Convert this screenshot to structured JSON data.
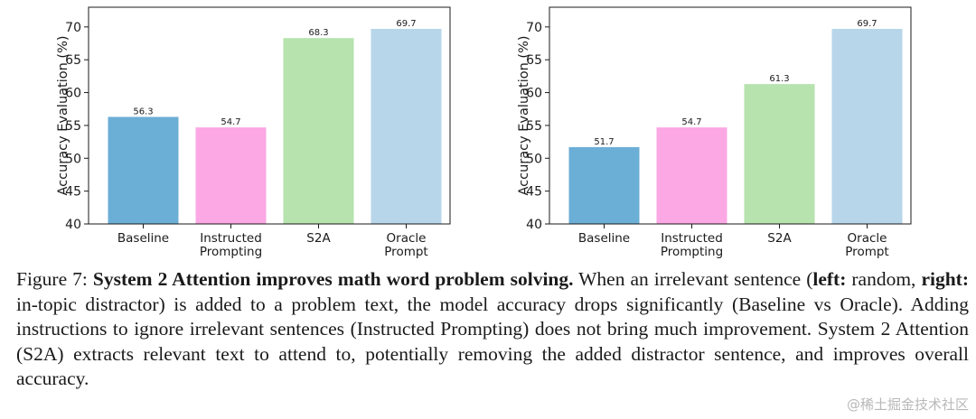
{
  "chart_data": [
    {
      "type": "bar",
      "panel": "left",
      "categories": [
        [
          "Baseline"
        ],
        [
          "Instructed",
          "Prompting"
        ],
        [
          "S2A"
        ],
        [
          "Oracle",
          "Prompt"
        ]
      ],
      "values": [
        56.3,
        54.7,
        68.3,
        69.7
      ],
      "value_labels": [
        "56.3",
        "54.7",
        "68.3",
        "69.7"
      ],
      "colors": [
        "#6baed6",
        "#fba8e4",
        "#b6e3ae",
        "#b7d6e9"
      ],
      "ylabel": "Accuracy Evaluation (%)",
      "ylim": [
        40,
        73
      ],
      "yticks": [
        40,
        45,
        50,
        55,
        60,
        65,
        70
      ],
      "grid": false
    },
    {
      "type": "bar",
      "panel": "right",
      "categories": [
        [
          "Baseline"
        ],
        [
          "Instructed",
          "Prompting"
        ],
        [
          "S2A"
        ],
        [
          "Oracle",
          "Prompt"
        ]
      ],
      "values": [
        51.7,
        54.7,
        61.3,
        69.7
      ],
      "value_labels": [
        "51.7",
        "54.7",
        "61.3",
        "69.7"
      ],
      "colors": [
        "#6baed6",
        "#fba8e4",
        "#b6e3ae",
        "#b7d6e9"
      ],
      "ylabel": "Accuracy Evaluation (%)",
      "ylim": [
        40,
        73
      ],
      "yticks": [
        40,
        45,
        50,
        55,
        60,
        65,
        70
      ],
      "grid": false
    }
  ],
  "caption": {
    "figure_label": "Figure 7:",
    "bold_title": "System 2 Attention improves math word problem solving.",
    "text_1": "When an irrelevant sentence (",
    "left_label": "left:",
    "text_2": "random,",
    "right_label": "right:",
    "text_3": "in-topic distractor) is added to a problem text, the model accuracy drops significantly (Baseline vs Oracle). Adding instructions to ignore irrelevant sentences (Instructed Prompting) does not bring much improvement. System 2 Attention (S2A) extracts relevant text to attend to, potentially removing the added distractor sentence, and improves overall accuracy."
  },
  "watermark": "@稀土掘金技术社区"
}
